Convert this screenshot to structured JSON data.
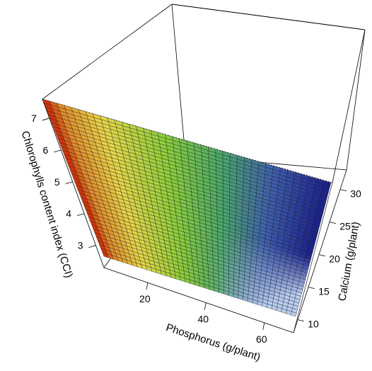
{
  "chart_data": {
    "type": "surface3d",
    "title": "",
    "xlabel": "Phosphorus (g/plant)",
    "ylabel": "Calcium (g/plant)",
    "zlabel": "Chlorophylls content index (CCI)",
    "xlim": [
      5,
      70
    ],
    "ylim": [
      8,
      33
    ],
    "zlim": [
      2.3,
      7.6
    ],
    "x_ticks": [
      20,
      40,
      60
    ],
    "y_ticks": [
      10,
      15,
      20,
      25,
      30
    ],
    "z_ticks": [
      3,
      4,
      5,
      6,
      7
    ],
    "x_tick_labels": [
      "20",
      "40",
      "60"
    ],
    "y_tick_labels": [
      "10",
      "15",
      "20",
      "25",
      "30"
    ],
    "z_tick_labels": [
      "3",
      "4",
      "5",
      "6",
      "7"
    ],
    "surface_corners": [
      {
        "phosphorus": 5,
        "calcium": 33,
        "cci": 7.6
      },
      {
        "phosphorus": 5,
        "calcium": 8,
        "cci": 2.3
      },
      {
        "phosphorus": 70,
        "calcium": 8,
        "cci": 2.8
      },
      {
        "phosphorus": 70,
        "calcium": 33,
        "cci": 6.4
      }
    ],
    "color_scale": [
      "#cc1f00",
      "#e08a2a",
      "#e8d64a",
      "#8ccf3a",
      "#4aa86a",
      "#3f5fae",
      "#1a1f8c",
      "#b9cdf0"
    ],
    "grid": false,
    "legend": "none"
  }
}
